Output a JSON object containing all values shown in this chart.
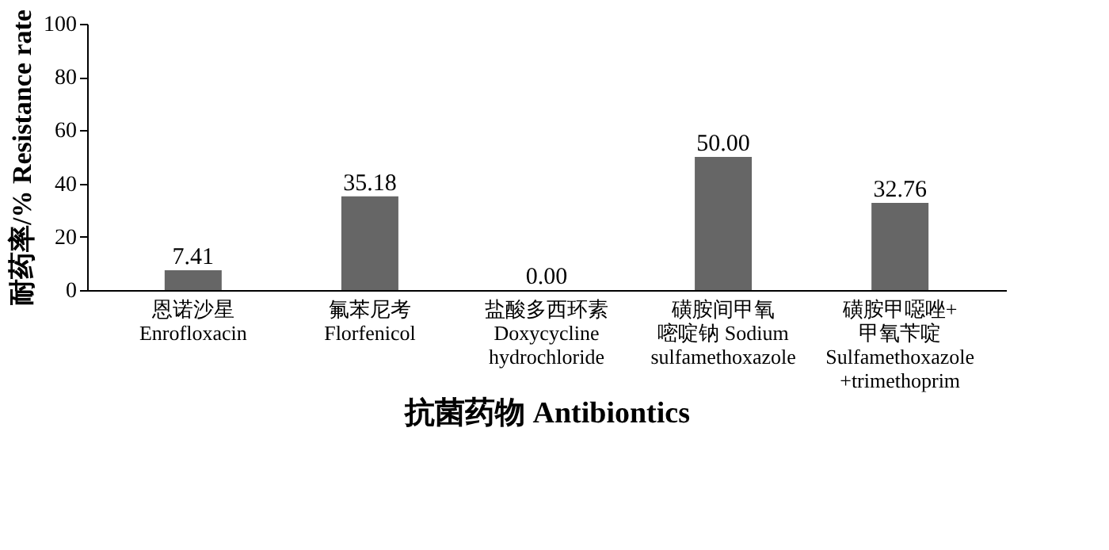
{
  "chart_data": {
    "type": "bar",
    "categories": [
      "恩诺沙星\nEnrofloxacin",
      "氟苯尼考\nFlorfenicol",
      "盐酸多西环素\nDoxycycline\nhydrochloride",
      "磺胺间甲氧嘧啶钠 Sodium\nsulfamethoxazole",
      "磺胺甲噁唑+\n甲氧苄啶\nSulfamethoxazole\n+trimethoprim"
    ],
    "values": [
      7.41,
      35.18,
      0.0,
      50.0,
      32.76
    ],
    "value_labels": [
      "7.41",
      "35.18",
      "0.00",
      "50.00",
      "32.76"
    ],
    "color": "#666666",
    "xlabel": "抗菌药物 Antibiontics",
    "ylabel": "耐药率/% Resistance rate",
    "ylim": [
      0,
      100
    ],
    "yticks": [
      0,
      20,
      40,
      60,
      80,
      100
    ],
    "grid": false
  }
}
